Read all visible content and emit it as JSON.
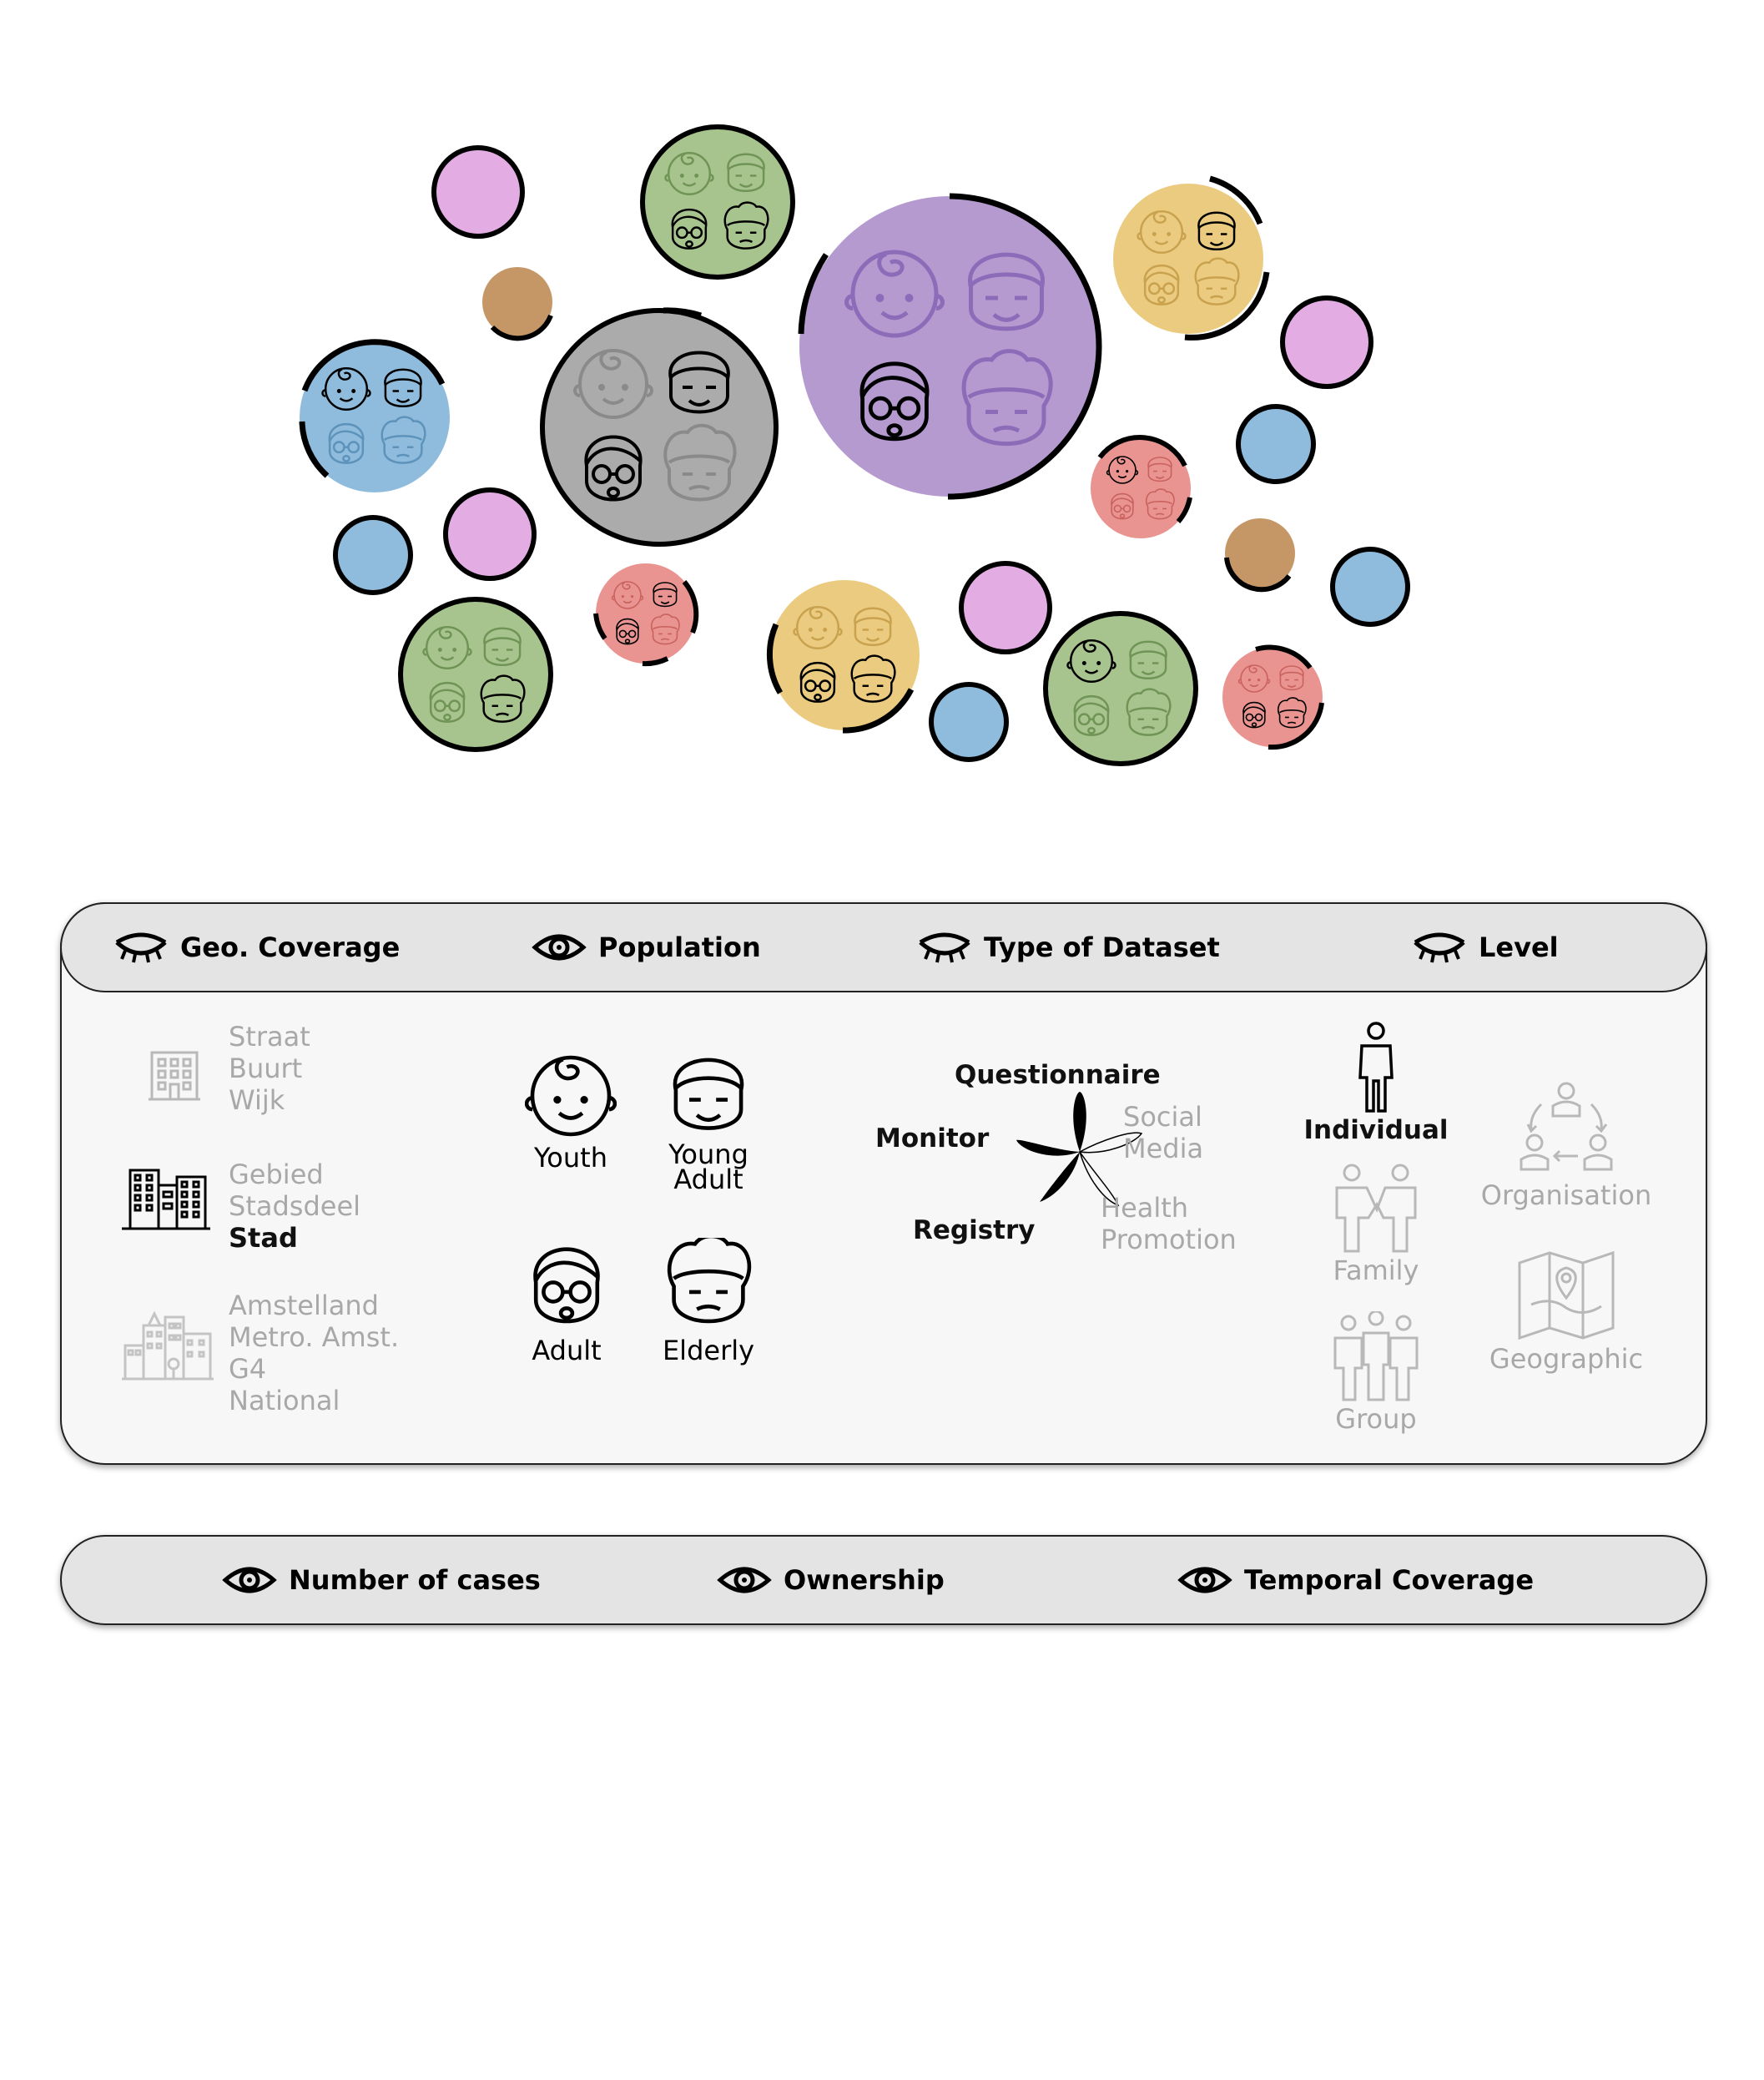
{
  "top_bar": {
    "items": [
      {
        "label": "Geo. Coverage",
        "icon": "eye-closed-icon"
      },
      {
        "label": "Population",
        "icon": "eye-open-icon"
      },
      {
        "label": "Type of Dataset",
        "icon": "eye-closed-icon"
      },
      {
        "label": "Level",
        "icon": "eye-closed-icon"
      }
    ]
  },
  "geo": {
    "group1": {
      "items": [
        "Straat",
        "Buurt",
        "Wijk"
      ],
      "active": false
    },
    "group2": {
      "items": [
        "Gebied",
        "Stadsdeel",
        "Stad"
      ],
      "active_item": "Stad"
    },
    "group3": {
      "items": [
        "Amstelland",
        "Metro. Amst.",
        "G4",
        "National"
      ],
      "active": false
    }
  },
  "population": {
    "items": [
      "Youth",
      "Young Adult",
      "Adult",
      "Elderly"
    ]
  },
  "dataset_type": {
    "active": [
      "Questionnaire",
      "Monitor",
      "Registry"
    ],
    "inactive": [
      "Social Media",
      "Health Promotion"
    ]
  },
  "level": {
    "active": "Individual",
    "inactive": [
      "Family",
      "Group",
      "Organisation",
      "Geographic"
    ]
  },
  "bottom_bar": {
    "items": [
      "Number of cases",
      "Ownership",
      "Temporal Coverage"
    ]
  },
  "colors": {
    "purple": "#b59ad0",
    "gray": "#ababab",
    "green": "#a8c48e",
    "yellow": "#ebcb7f",
    "blue": "#8fbcdc",
    "salmon": "#e99490",
    "pink": "#e3ade3",
    "brown": "#c59767",
    "panel": "#f7f7f7",
    "bar": "#e4e4e4",
    "dim_text": "#a8a8a8"
  }
}
